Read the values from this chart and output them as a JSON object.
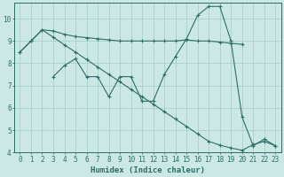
{
  "title": "",
  "xlabel": "Humidex (Indice chaleur)",
  "bg_color": "#cce8e5",
  "grid_color": "#aacfcc",
  "line_color": "#2d6e68",
  "xlim": [
    -0.5,
    23.5
  ],
  "ylim": [
    4,
    10.7
  ],
  "yticks": [
    4,
    5,
    6,
    7,
    8,
    9,
    10
  ],
  "xticks": [
    0,
    1,
    2,
    3,
    4,
    5,
    6,
    7,
    8,
    9,
    10,
    11,
    12,
    13,
    14,
    15,
    16,
    17,
    18,
    19,
    20,
    21,
    22,
    23
  ],
  "line1_x": [
    0,
    1,
    2,
    3,
    4,
    5,
    6,
    7,
    8,
    9,
    10,
    11,
    12,
    13,
    14,
    15,
    16,
    17,
    18,
    19,
    20
  ],
  "line1_y": [
    8.5,
    9.0,
    9.5,
    9.45,
    9.3,
    9.2,
    9.15,
    9.1,
    9.05,
    9.0,
    9.0,
    9.0,
    9.0,
    9.0,
    9.0,
    9.05,
    9.0,
    9.0,
    8.95,
    8.9,
    8.85
  ],
  "line2_x": [
    0,
    1,
    2,
    3,
    4,
    5,
    6,
    7,
    8,
    9,
    10,
    11,
    12,
    13,
    14,
    15,
    16,
    17,
    18,
    19,
    20,
    21,
    22,
    23
  ],
  "line2_y": [
    8.5,
    9.0,
    9.5,
    9.17,
    8.83,
    8.5,
    8.17,
    7.83,
    7.5,
    7.17,
    6.83,
    6.5,
    6.17,
    5.83,
    5.5,
    5.17,
    4.83,
    4.5,
    4.33,
    4.2,
    4.1,
    4.35,
    4.5,
    4.3
  ],
  "line3_x": [
    3,
    4,
    5,
    6,
    7,
    8,
    9,
    10,
    11,
    12,
    13,
    14,
    15,
    16,
    17,
    18,
    19,
    20,
    21,
    22,
    23
  ],
  "line3_y": [
    7.4,
    7.9,
    8.2,
    7.4,
    7.4,
    6.5,
    7.4,
    7.4,
    6.3,
    6.3,
    7.5,
    8.3,
    9.1,
    10.15,
    10.55,
    10.55,
    9.0,
    5.6,
    4.3,
    4.6,
    4.3
  ]
}
